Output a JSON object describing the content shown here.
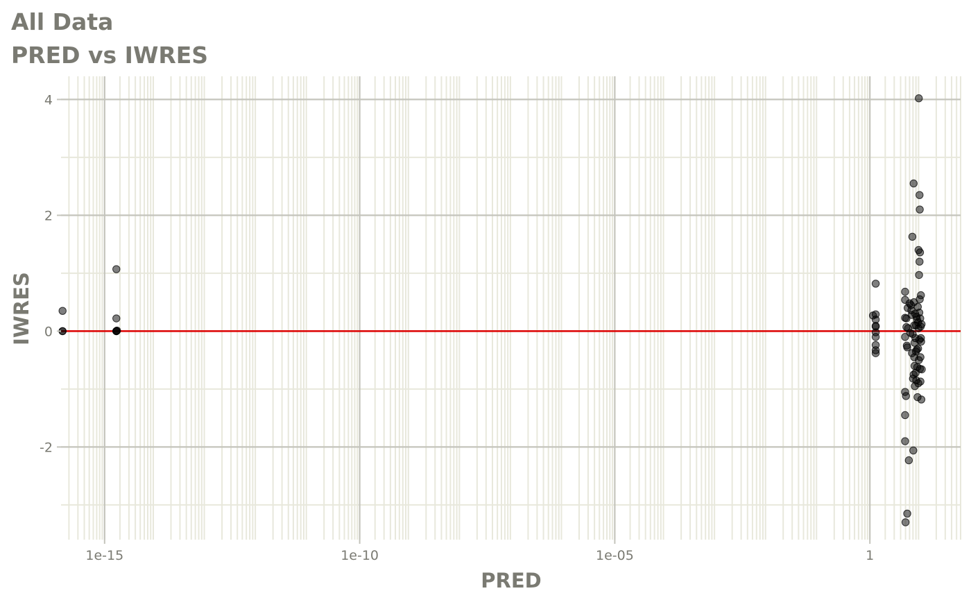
{
  "title": "All Data",
  "subtitle": "PRED vs IWRES",
  "chart_data": {
    "type": "scatter",
    "xlabel": "PRED",
    "ylabel": "IWRES",
    "xscale": "log10",
    "xlim": [
      1.4e-16,
      60
    ],
    "ylim": [
      -3.6,
      4.4
    ],
    "xticks": [
      1e-15,
      1e-10,
      1e-05,
      1
    ],
    "xtick_labels": [
      "1e-15",
      "1e-10",
      "1e-05",
      "1"
    ],
    "yticks": [
      -2,
      0,
      2,
      4
    ],
    "ytick_labels": [
      "-2",
      "0",
      "2",
      "4"
    ],
    "grid": true,
    "reference_line": {
      "y": 0,
      "color": "#dd0000"
    },
    "colors": {
      "points": "#000000",
      "grid_major": "#c4c4bc",
      "grid_minor": "#e8e8dc",
      "text": "#7a7a72"
    },
    "points": [
      {
        "x": 1.5e-16,
        "y": 0.35
      },
      {
        "x": 1.5e-16,
        "y": 0.0
      },
      {
        "x": 1.5e-16,
        "y": 0.0
      },
      {
        "x": 1.7e-15,
        "y": 1.07
      },
      {
        "x": 1.7e-15,
        "y": 0.22
      },
      {
        "x": 1.7e-15,
        "y": 0.0
      },
      {
        "x": 1.7e-15,
        "y": 0.0
      },
      {
        "x": 1.7e-15,
        "y": 0.0
      },
      {
        "x": 1.75e-15,
        "y": 0.01
      },
      {
        "x": 1.15,
        "y": 0.27
      },
      {
        "x": 1.3,
        "y": 0.82
      },
      {
        "x": 1.3,
        "y": 0.29
      },
      {
        "x": 1.3,
        "y": 0.2
      },
      {
        "x": 1.3,
        "y": 0.09
      },
      {
        "x": 1.3,
        "y": 0.08
      },
      {
        "x": 1.3,
        "y": -0.02
      },
      {
        "x": 1.3,
        "y": -0.1
      },
      {
        "x": 1.3,
        "y": -0.24
      },
      {
        "x": 1.3,
        "y": -0.33
      },
      {
        "x": 1.3,
        "y": -0.38
      },
      {
        "x": 4.9,
        "y": 0.68
      },
      {
        "x": 4.9,
        "y": 0.54
      },
      {
        "x": 4.9,
        "y": 0.23
      },
      {
        "x": 4.9,
        "y": -0.1
      },
      {
        "x": 4.9,
        "y": -1.05
      },
      {
        "x": 4.9,
        "y": -1.45
      },
      {
        "x": 4.9,
        "y": -1.9
      },
      {
        "x": 5.0,
        "y": -3.3
      },
      {
        "x": 5.1,
        "y": -1.12
      },
      {
        "x": 5.2,
        "y": 0.22
      },
      {
        "x": 5.2,
        "y": 0.07
      },
      {
        "x": 5.3,
        "y": -0.25
      },
      {
        "x": 5.4,
        "y": -0.28
      },
      {
        "x": 5.4,
        "y": -3.15
      },
      {
        "x": 5.5,
        "y": 0.4
      },
      {
        "x": 5.6,
        "y": 0.05
      },
      {
        "x": 5.8,
        "y": -2.23
      },
      {
        "x": 6.0,
        "y": 0.48
      },
      {
        "x": 6.2,
        "y": -0.03
      },
      {
        "x": 6.4,
        "y": 0.45
      },
      {
        "x": 6.5,
        "y": 0.36
      },
      {
        "x": 6.6,
        "y": 0.28
      },
      {
        "x": 6.7,
        "y": -0.38
      },
      {
        "x": 6.8,
        "y": 1.63
      },
      {
        "x": 6.9,
        "y": -0.05
      },
      {
        "x": 7.0,
        "y": -0.82
      },
      {
        "x": 7.1,
        "y": -2.06
      },
      {
        "x": 7.2,
        "y": 2.55
      },
      {
        "x": 7.2,
        "y": -0.75
      },
      {
        "x": 7.3,
        "y": 0.5
      },
      {
        "x": 7.4,
        "y": 0.1
      },
      {
        "x": 7.4,
        "y": -0.45
      },
      {
        "x": 7.5,
        "y": -0.2
      },
      {
        "x": 7.5,
        "y": -0.6
      },
      {
        "x": 7.6,
        "y": -0.95
      },
      {
        "x": 7.7,
        "y": 0.3
      },
      {
        "x": 7.8,
        "y": -0.12
      },
      {
        "x": 7.9,
        "y": -0.72
      },
      {
        "x": 8.0,
        "y": 0.1
      },
      {
        "x": 8.0,
        "y": -0.35
      },
      {
        "x": 8.1,
        "y": -0.85
      },
      {
        "x": 8.2,
        "y": 0.25
      },
      {
        "x": 8.3,
        "y": -0.32
      },
      {
        "x": 8.4,
        "y": 0.2
      },
      {
        "x": 8.5,
        "y": -0.62
      },
      {
        "x": 8.6,
        "y": -1.14
      },
      {
        "x": 8.7,
        "y": 0.42
      },
      {
        "x": 8.8,
        "y": 0.15
      },
      {
        "x": 8.8,
        "y": -0.3
      },
      {
        "x": 8.9,
        "y": -0.9
      },
      {
        "x": 9.0,
        "y": 1.4
      },
      {
        "x": 9.0,
        "y": 0.05
      },
      {
        "x": 9.1,
        "y": -0.5
      },
      {
        "x": 9.1,
        "y": 4.02
      },
      {
        "x": 9.2,
        "y": 0.97
      },
      {
        "x": 9.3,
        "y": 0.32
      },
      {
        "x": 9.3,
        "y": -0.15
      },
      {
        "x": 9.4,
        "y": 1.2
      },
      {
        "x": 9.4,
        "y": 2.35
      },
      {
        "x": 9.5,
        "y": 0.55
      },
      {
        "x": 9.5,
        "y": 2.1
      },
      {
        "x": 9.6,
        "y": 1.36
      },
      {
        "x": 9.6,
        "y": -0.65
      },
      {
        "x": 9.7,
        "y": 0.22
      },
      {
        "x": 9.8,
        "y": -0.45
      },
      {
        "x": 9.8,
        "y": -0.87
      },
      {
        "x": 9.9,
        "y": 0.08
      },
      {
        "x": 10.0,
        "y": 0.62
      },
      {
        "x": 10.0,
        "y": -0.12
      },
      {
        "x": 10.1,
        "y": -0.18
      },
      {
        "x": 10.2,
        "y": -1.18
      },
      {
        "x": 10.3,
        "y": 0.12
      },
      {
        "x": 10.4,
        "y": -0.66
      }
    ]
  }
}
